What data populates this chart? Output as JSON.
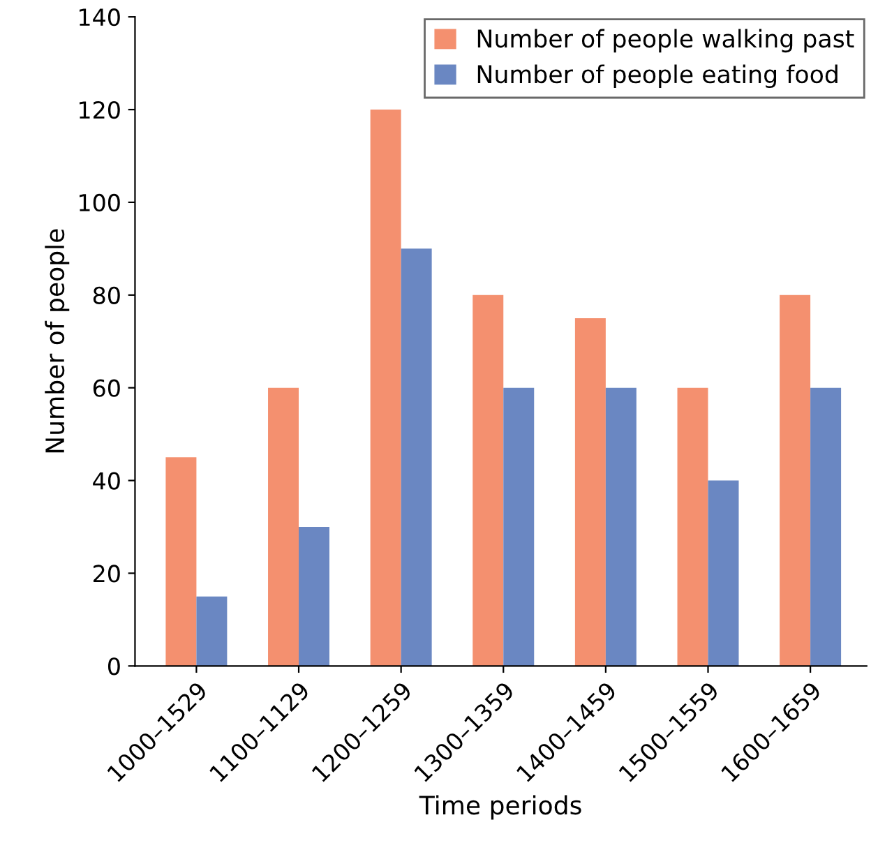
{
  "chart_data": {
    "type": "bar",
    "xlabel": "Time periods",
    "ylabel": "Number of people",
    "categories": [
      "1000–1529",
      "1100–1129",
      "1200–1259",
      "1300–1359",
      "1400–1459",
      "1500–1559",
      "1600–1659"
    ],
    "series": [
      {
        "name": "Number of people walking past",
        "color": "#f4906f",
        "values": [
          45,
          60,
          120,
          80,
          75,
          60,
          80
        ]
      },
      {
        "name": "Number of people eating food",
        "color": "#6a87c2",
        "values": [
          15,
          30,
          90,
          60,
          60,
          40,
          60
        ]
      }
    ],
    "ylim": [
      0,
      140
    ],
    "yticks": [
      0,
      20,
      40,
      60,
      80,
      100,
      120,
      140
    ],
    "grid": false,
    "legend": "top right"
  }
}
